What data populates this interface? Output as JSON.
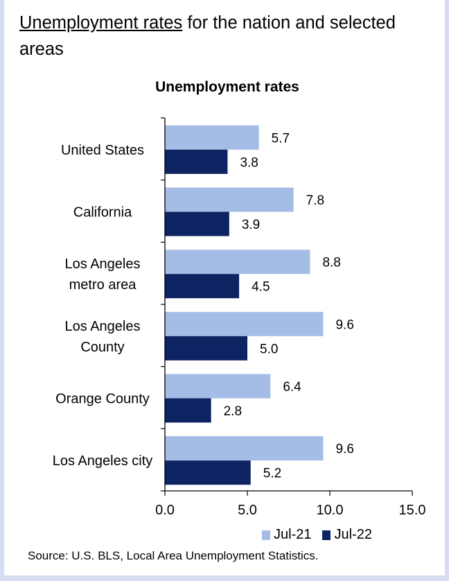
{
  "heading": {
    "link_text": "Unemployment rates",
    "rest_text": " for the nation and selected areas"
  },
  "source": "Source: U.S. BLS, Local Area Unemployment Statistics.",
  "colors": {
    "jul21": "#a5bde6",
    "jul22": "#0e2362"
  },
  "chart_data": {
    "type": "bar",
    "orientation": "horizontal",
    "title": "Unemployment rates",
    "categories": [
      "United States",
      "California",
      "Los Angeles metro area",
      "Los Angeles County",
      "Orange County",
      "Los Angeles city"
    ],
    "category_label_lines": [
      [
        "United States"
      ],
      [
        "California"
      ],
      [
        "Los Angeles",
        "metro area"
      ],
      [
        "Los Angeles",
        "County"
      ],
      [
        "Orange County"
      ],
      [
        "Los Angeles city"
      ]
    ],
    "series": [
      {
        "name": "Jul-21",
        "values": [
          5.7,
          7.8,
          8.8,
          9.6,
          6.4,
          9.6
        ]
      },
      {
        "name": "Jul-22",
        "values": [
          3.8,
          3.9,
          4.5,
          5.0,
          2.8,
          5.2
        ]
      }
    ],
    "xlim": [
      0,
      15
    ],
    "xticks": [
      "0.0",
      "5.0",
      "10.0",
      "15.0"
    ],
    "xlabel": "",
    "ylabel": "",
    "grid": false,
    "legend_position": "bottom-right"
  }
}
